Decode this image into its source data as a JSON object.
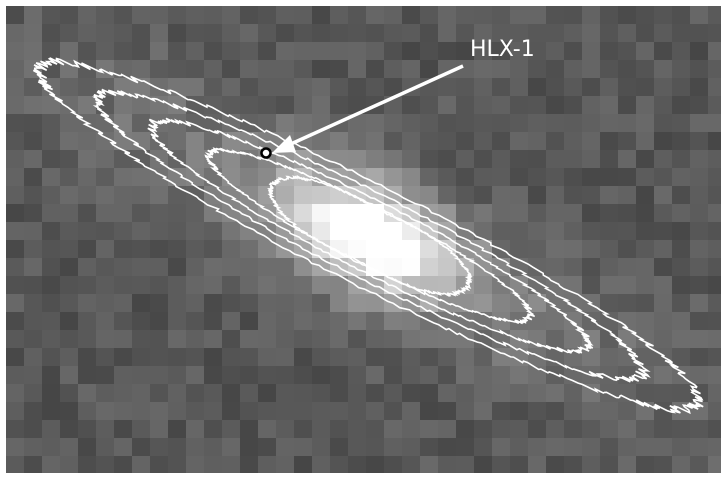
{
  "label": "HLX-1"
}
